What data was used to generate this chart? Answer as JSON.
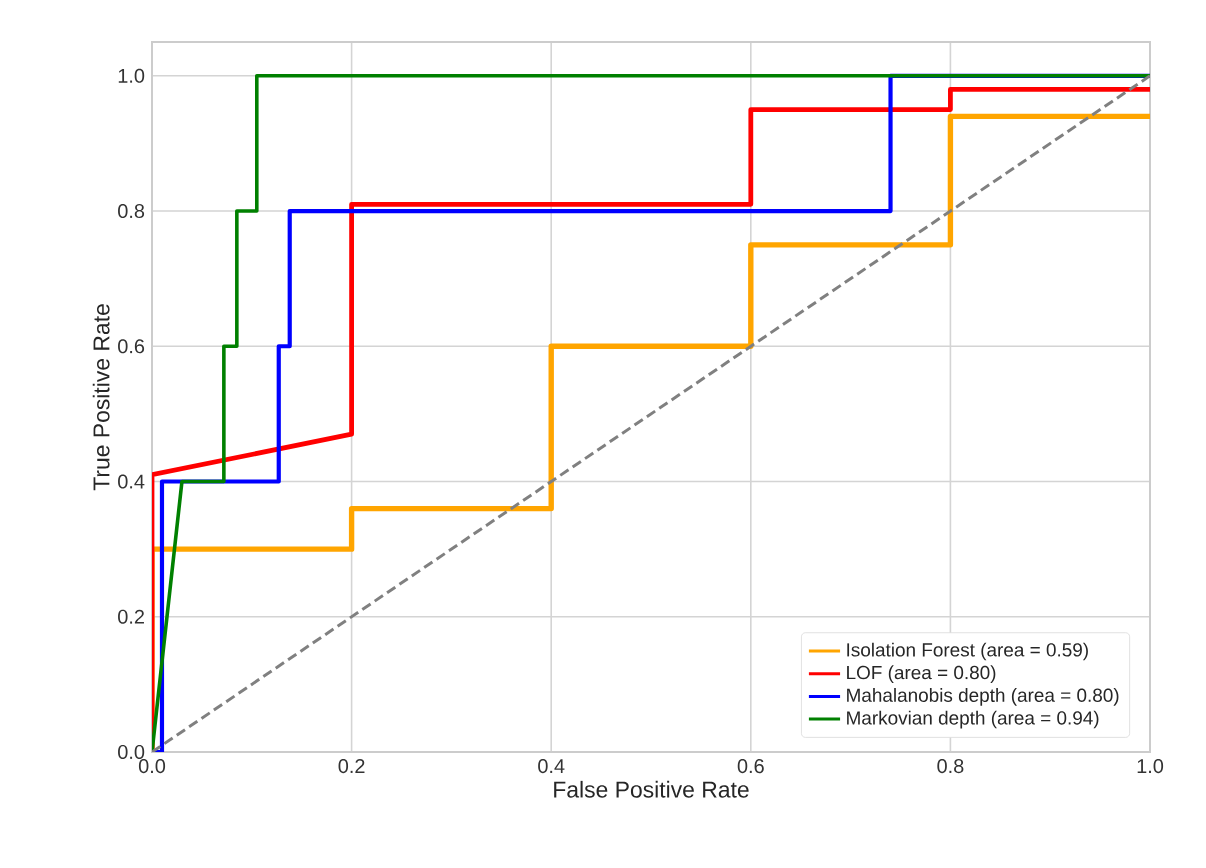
{
  "chart_data": {
    "type": "line",
    "xlabel": "False Positive Rate",
    "ylabel": "True Positive Rate",
    "xlim": [
      0,
      1
    ],
    "ylim": [
      0,
      1.05
    ],
    "xticks": [
      {
        "value": 0,
        "label": "0.0"
      },
      {
        "value": 0.2,
        "label": "0.2"
      },
      {
        "value": 0.4,
        "label": "0.4"
      },
      {
        "value": 0.6,
        "label": "0.6"
      },
      {
        "value": 0.8,
        "label": "0.8"
      },
      {
        "value": 1,
        "label": "1.0"
      }
    ],
    "yticks": [
      {
        "value": 0,
        "label": "0.0"
      },
      {
        "value": 0.2,
        "label": "0.2"
      },
      {
        "value": 0.4,
        "label": "0.4"
      },
      {
        "value": 0.6,
        "label": "0.6"
      },
      {
        "value": 0.8,
        "label": "0.8"
      },
      {
        "value": 1,
        "label": "1.0"
      }
    ],
    "grid": true,
    "legend": "bottom right",
    "marker": "none",
    "line_style": "solid",
    "series": [
      {
        "name": "Isolation Forest (area = 0.59)",
        "color": "#ffa500",
        "x": [
          0,
          0,
          0.2,
          0.2,
          0.4,
          0.4,
          0.6,
          0.6,
          0.8,
          0.8,
          1
        ],
        "values": [
          0,
          0.3,
          0.3,
          0.36,
          0.36,
          0.6,
          0.6,
          0.75,
          0.75,
          0.94,
          0.94
        ]
      },
      {
        "name": "LOF (area = 0.80)",
        "color": "#ff0000",
        "x": [
          0,
          0,
          0.2,
          0.2,
          0.6,
          0.6,
          0.8,
          0.8,
          1
        ],
        "values": [
          0,
          0.41,
          0.47,
          0.81,
          0.81,
          0.95,
          0.95,
          0.98,
          0.98
        ]
      },
      {
        "name": "Mahalanobis depth (area = 0.80)",
        "color": "#0000ff",
        "x": [
          0,
          0.01,
          0.01,
          0.127,
          0.127,
          0.138,
          0.138,
          0.74,
          0.74,
          1
        ],
        "values": [
          0,
          0,
          0.4,
          0.4,
          0.6,
          0.6,
          0.8,
          0.8,
          1,
          1
        ]
      },
      {
        "name": "Markovian depth (area = 0.94)",
        "color": "#008000",
        "x": [
          0,
          0.03,
          0.072,
          0.072,
          0.085,
          0.085,
          0.105,
          0.105,
          1
        ],
        "values": [
          0,
          0.4,
          0.4,
          0.6,
          0.6,
          0.8,
          0.8,
          1,
          1
        ]
      },
      {
        "color": "#808080",
        "line_style": "dashed",
        "x": [
          0,
          1
        ],
        "values": [
          0,
          1
        ]
      }
    ]
  }
}
